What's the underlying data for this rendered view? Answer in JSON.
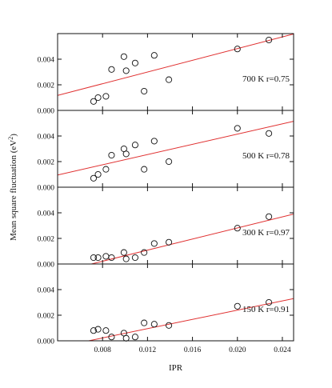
{
  "chart_data": {
    "type": "scatter",
    "ylabel_parts": {
      "main": "Mean square fluctuation (eV",
      "sup": "2",
      "end": ")"
    },
    "xlabel": "IPR",
    "xlim": [
      0.004,
      0.025
    ],
    "xticks": [
      "0.008",
      "0.012",
      "0.016",
      "0.020",
      "0.024"
    ],
    "xtick_values": [
      0.008,
      0.012,
      0.016,
      0.02,
      0.024
    ],
    "fit_line_color": "#e03030",
    "marker": "open-circle",
    "panels": [
      {
        "label": "700 K r=0.75",
        "ylim": [
          0,
          0.006
        ],
        "yticks": [
          "0.000",
          "0.002",
          "0.004"
        ],
        "ytick_values": [
          0,
          0.002,
          0.004
        ],
        "fit": {
          "x": [
            0.004,
            0.025
          ],
          "y": [
            0.00117,
            0.00597
          ]
        },
        "points": [
          [
            0.0072,
            0.0007
          ],
          [
            0.0076,
            0.001
          ],
          [
            0.0083,
            0.0011
          ],
          [
            0.0088,
            0.0032
          ],
          [
            0.0099,
            0.0042
          ],
          [
            0.0101,
            0.0031
          ],
          [
            0.0109,
            0.0037
          ],
          [
            0.0117,
            0.0015
          ],
          [
            0.0126,
            0.0043
          ],
          [
            0.0139,
            0.0024
          ],
          [
            0.02,
            0.0048
          ],
          [
            0.0228,
            0.0055
          ]
        ]
      },
      {
        "label": "500 K r=0.78",
        "ylim": [
          0,
          0.006
        ],
        "yticks": [
          "0.000",
          "0.002",
          "0.004"
        ],
        "ytick_values": [
          0,
          0.002,
          0.004
        ],
        "fit": {
          "x": [
            0.004,
            0.025
          ],
          "y": [
            0.00095,
            0.00515
          ]
        },
        "points": [
          [
            0.0072,
            0.0007
          ],
          [
            0.0076,
            0.001
          ],
          [
            0.0083,
            0.0014
          ],
          [
            0.0088,
            0.0025
          ],
          [
            0.0099,
            0.003
          ],
          [
            0.0101,
            0.0026
          ],
          [
            0.0109,
            0.0033
          ],
          [
            0.0117,
            0.0014
          ],
          [
            0.0126,
            0.0036
          ],
          [
            0.0139,
            0.002
          ],
          [
            0.02,
            0.0046
          ],
          [
            0.0228,
            0.0042
          ]
        ]
      },
      {
        "label": "300 K r=0.97",
        "ylim": [
          0,
          0.006
        ],
        "yticks": [
          "0.000",
          "0.002",
          "0.004"
        ],
        "ytick_values": [
          0,
          0.002,
          0.004
        ],
        "fit": {
          "x": [
            0.004,
            0.025
          ],
          "y": [
            -0.00065,
            0.0039
          ]
        },
        "points": [
          [
            0.0072,
            0.0005
          ],
          [
            0.0076,
            0.0005
          ],
          [
            0.0083,
            0.0006
          ],
          [
            0.0088,
            0.0005
          ],
          [
            0.0099,
            0.0009
          ],
          [
            0.0101,
            0.0004
          ],
          [
            0.0109,
            0.0005
          ],
          [
            0.0117,
            0.0009
          ],
          [
            0.0126,
            0.0016
          ],
          [
            0.0139,
            0.0017
          ],
          [
            0.02,
            0.0028
          ],
          [
            0.0228,
            0.0037
          ]
        ]
      },
      {
        "label": "150 K r=0.91",
        "ylim": [
          0,
          0.006
        ],
        "yticks": [
          "0.000",
          "0.002",
          "0.004"
        ],
        "ytick_values": [
          0,
          0.002,
          0.004
        ],
        "fit": {
          "x": [
            0.004,
            0.025
          ],
          "y": [
            -0.0005,
            0.0033
          ]
        },
        "points": [
          [
            0.0072,
            0.0008
          ],
          [
            0.0076,
            0.0009
          ],
          [
            0.0083,
            0.0008
          ],
          [
            0.0088,
            0.0003
          ],
          [
            0.0099,
            0.0006
          ],
          [
            0.0101,
            0.0002
          ],
          [
            0.0109,
            0.0003
          ],
          [
            0.0117,
            0.0014
          ],
          [
            0.0126,
            0.0013
          ],
          [
            0.0139,
            0.0012
          ],
          [
            0.02,
            0.0027
          ],
          [
            0.0228,
            0.003
          ]
        ]
      }
    ]
  }
}
